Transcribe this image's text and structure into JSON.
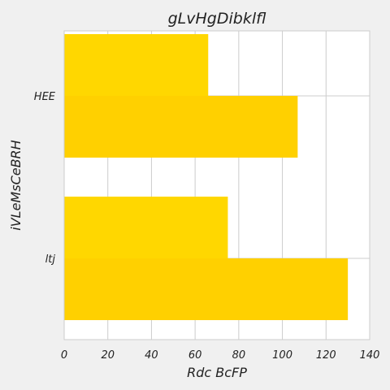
{
  "chart_data": {
    "type": "bar",
    "orientation": "horizontal",
    "title": "gLvHgDibklfl",
    "xlabel": "Rdc BcFP",
    "ylabel": "iVLeMsCeBRH",
    "categories": [
      "HEE",
      "ltj"
    ],
    "series": [
      {
        "values": [
          66,
          75
        ],
        "color": "#ffd700"
      },
      {
        "values": [
          107,
          130
        ],
        "color": "#ffd000"
      }
    ],
    "xlim": [
      0,
      140
    ],
    "xticks": [
      0,
      20,
      40,
      60,
      80,
      100,
      120,
      140
    ],
    "grid": true,
    "background": "#f0f0f0",
    "plot_background": "#ffffff",
    "grid_color": "#cccccc"
  }
}
